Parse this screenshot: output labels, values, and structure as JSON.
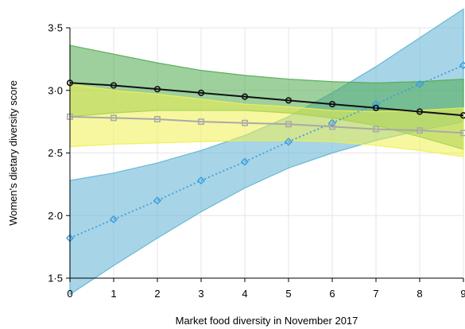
{
  "chart_data": {
    "type": "line",
    "xlabel": "Market food diversity in November 2017",
    "ylabel": "Women's dietary diversity score",
    "xlim": [
      0,
      9
    ],
    "ylim": [
      1.5,
      3.5
    ],
    "x_ticks": [
      "0",
      "1",
      "2",
      "3",
      "4",
      "5",
      "6",
      "7",
      "8",
      "9"
    ],
    "y_ticks": [
      {
        "value": 1.5,
        "label": "1·5"
      },
      {
        "value": 2.0,
        "label": "2·0"
      },
      {
        "value": 2.5,
        "label": "2·5"
      },
      {
        "value": 3.0,
        "label": "3·0"
      },
      {
        "value": 3.5,
        "label": "3·5"
      }
    ],
    "grid": true,
    "x": [
      0,
      1,
      2,
      3,
      4,
      5,
      6,
      7,
      8,
      9
    ],
    "series": [
      {
        "values": [
          1.82,
          1.97,
          2.12,
          2.28,
          2.43,
          2.59,
          2.74,
          2.89,
          3.05,
          3.2
        ],
        "lower": [
          1.37,
          1.6,
          1.82,
          2.03,
          2.22,
          2.38,
          2.5,
          2.6,
          2.68,
          2.75
        ],
        "upper": [
          2.28,
          2.34,
          2.42,
          2.52,
          2.64,
          2.79,
          2.98,
          3.19,
          3.42,
          3.65
        ],
        "color": "#3d9ee0",
        "band_color": "#5fb3d3",
        "marker": "diamond",
        "dash": "dotted"
      },
      {
        "values": [
          3.06,
          3.04,
          3.01,
          2.98,
          2.95,
          2.92,
          2.89,
          2.86,
          2.83,
          2.8
        ],
        "lower": [
          2.79,
          2.82,
          2.84,
          2.84,
          2.84,
          2.82,
          2.78,
          2.72,
          2.63,
          2.53
        ],
        "upper": [
          3.36,
          3.29,
          3.22,
          3.16,
          3.12,
          3.09,
          3.07,
          3.06,
          3.07,
          3.09
        ],
        "color": "#111111",
        "band_color": "#4faa4f",
        "marker": "circle",
        "dash": "solid"
      },
      {
        "values": [
          2.79,
          2.78,
          2.77,
          2.75,
          2.74,
          2.73,
          2.71,
          2.69,
          2.68,
          2.66
        ],
        "lower": [
          2.55,
          2.57,
          2.58,
          2.59,
          2.6,
          2.6,
          2.59,
          2.56,
          2.52,
          2.47
        ],
        "upper": [
          3.05,
          3.0,
          2.97,
          2.93,
          2.89,
          2.87,
          2.84,
          2.83,
          2.84,
          2.86
        ],
        "color": "#a9a9a9",
        "band_color": "#f0f050",
        "marker": "square",
        "dash": "solid"
      }
    ]
  }
}
